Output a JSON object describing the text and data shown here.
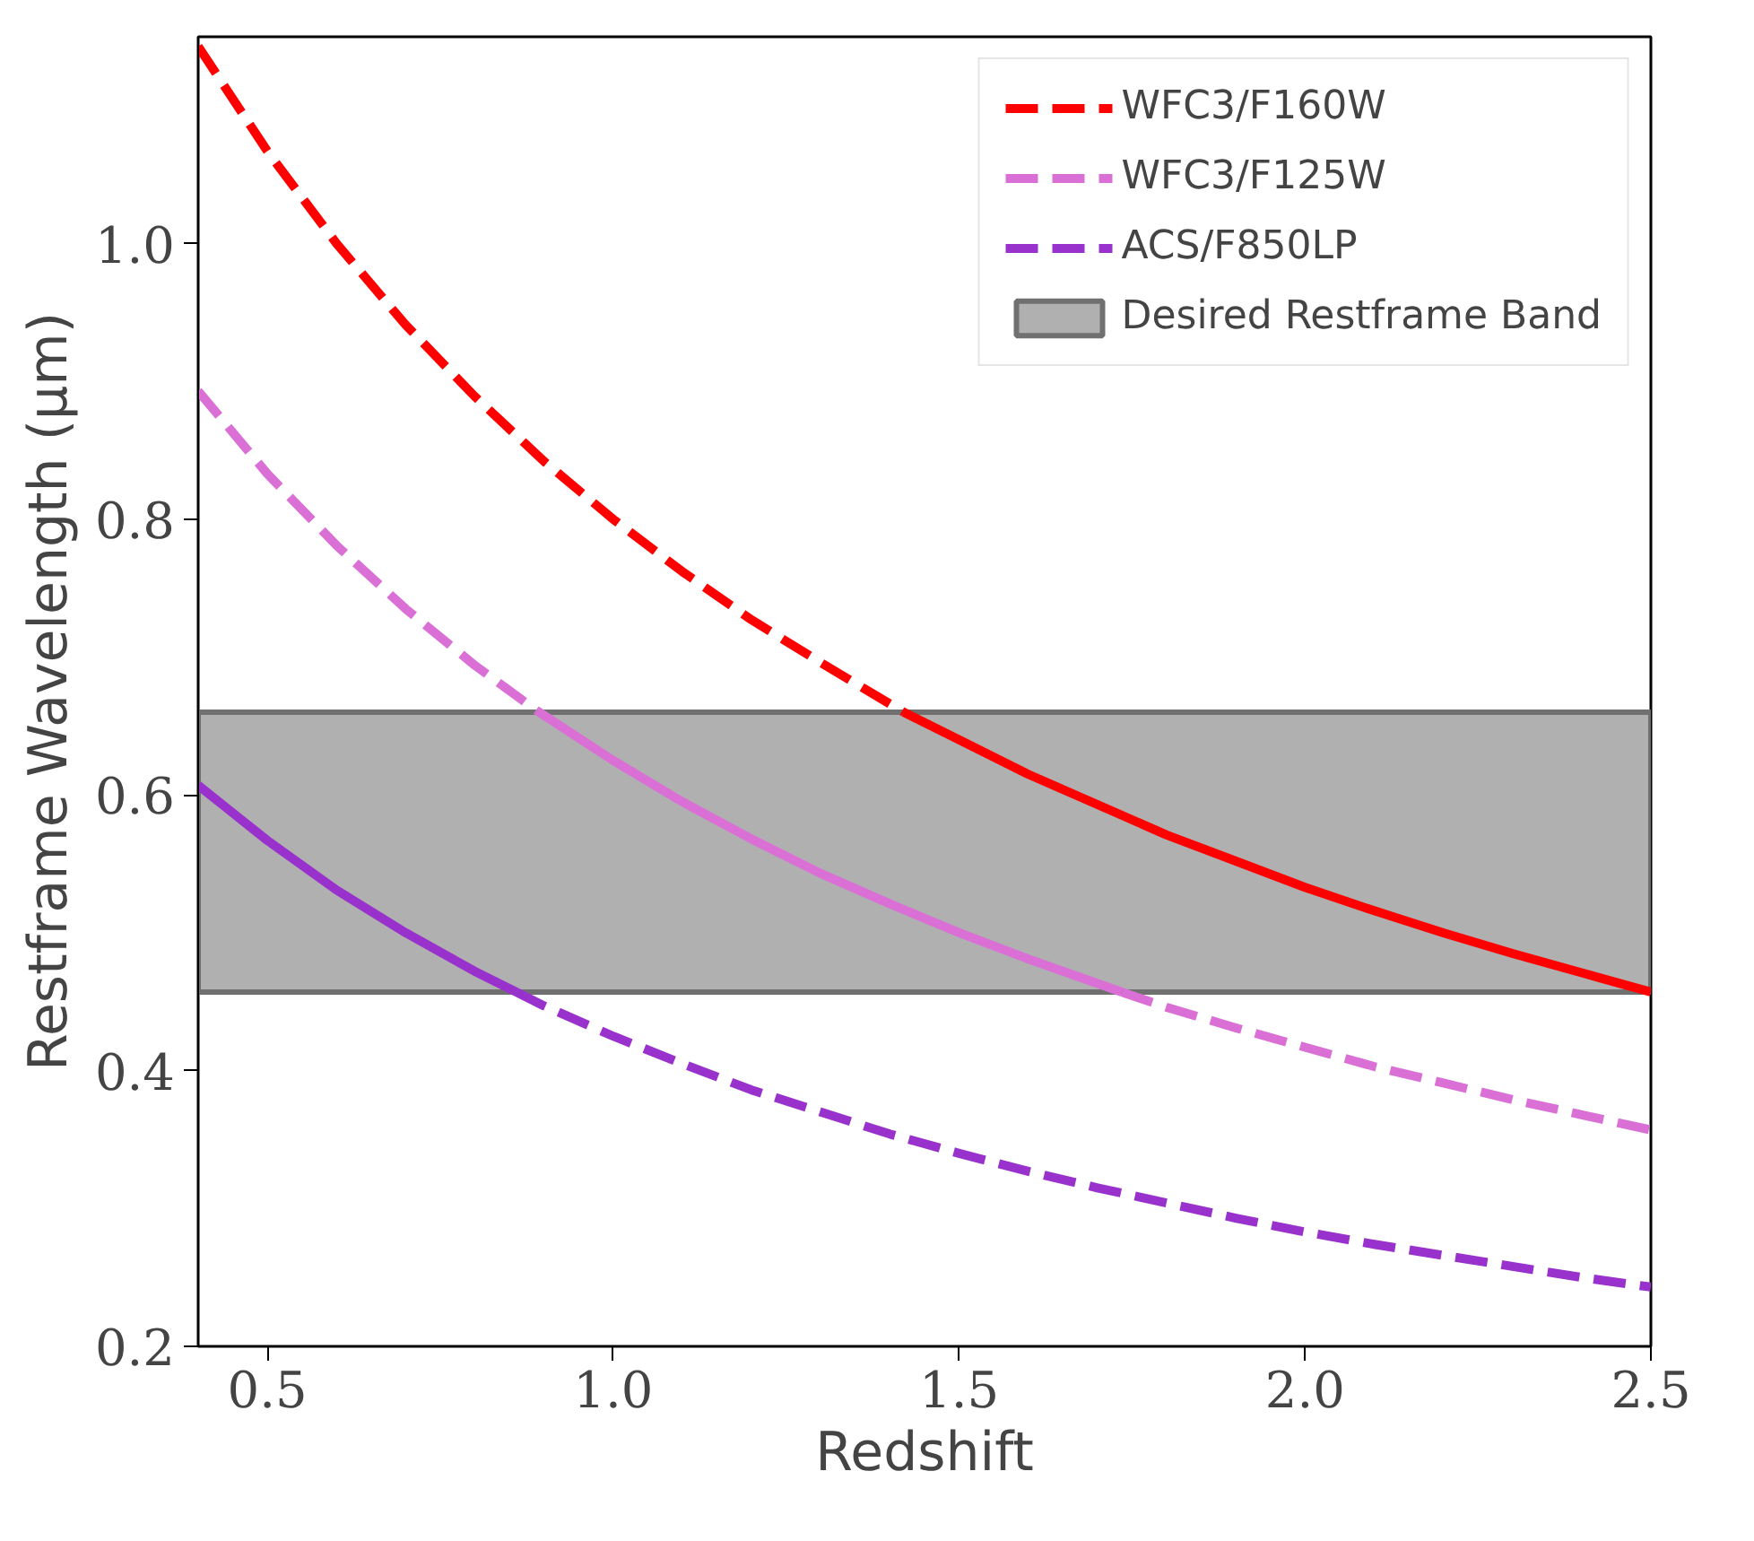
{
  "chart_data": {
    "type": "line",
    "xlabel": "Redshift",
    "ylabel": "Restframe Wavelength (μm)",
    "xlim": [
      0.4,
      2.5
    ],
    "ylim": [
      0.2,
      1.15
    ],
    "xticks": [
      0.5,
      {
        "value": 1,
        "label": "1.0"
      },
      1.5,
      {
        "value": 2,
        "label": "2.0"
      },
      2.5
    ],
    "yticks": [
      0.2,
      0.4,
      0.6,
      0.8,
      {
        "value": 1,
        "label": "1.0"
      }
    ],
    "grid": false,
    "legend": "top right",
    "bands": [
      {
        "axis": "y",
        "from": 0.457,
        "to": 0.66,
        "label": "Desired Restframe Band",
        "color": "#b0b0b0"
      }
    ],
    "series": [
      {
        "name": "WFC3/F160W",
        "color": "#ff0000",
        "line_style": "dashed",
        "x": [
          0.4,
          0.5,
          0.6,
          0.7,
          0.8,
          0.9,
          1.0,
          1.1,
          1.2,
          1.3,
          1.42
        ],
        "values": [
          1.143,
          1.067,
          1.0,
          0.941,
          0.889,
          0.842,
          0.8,
          0.762,
          0.727,
          0.696,
          0.66
        ]
      },
      {
        "color": "#ff0000",
        "line_style": "solid",
        "x": [
          1.42,
          1.5,
          1.6,
          1.7,
          1.8,
          1.9,
          2.0,
          2.1,
          2.2,
          2.3,
          2.4,
          2.5
        ],
        "values": [
          0.66,
          0.64,
          0.615,
          0.593,
          0.571,
          0.552,
          0.533,
          0.516,
          0.5,
          0.485,
          0.471,
          0.457
        ]
      },
      {
        "name": "WFC3/F125W",
        "color": "#da70d6",
        "line_style": "dashed",
        "x": [
          0.4,
          0.5,
          0.6,
          0.7,
          0.8,
          0.89
        ],
        "values": [
          0.893,
          0.833,
          0.781,
          0.735,
          0.694,
          0.661
        ]
      },
      {
        "color": "#da70d6",
        "line_style": "solid",
        "x": [
          0.89,
          1.0,
          1.1,
          1.2,
          1.3,
          1.4,
          1.5,
          1.6,
          1.735
        ],
        "values": [
          0.661,
          0.625,
          0.595,
          0.568,
          0.543,
          0.521,
          0.5,
          0.481,
          0.457
        ]
      },
      {
        "color": "#da70d6",
        "line_style": "dashed",
        "x": [
          1.735,
          1.8,
          1.9,
          2.0,
          2.1,
          2.2,
          2.3,
          2.4,
          2.5
        ],
        "values": [
          0.457,
          0.446,
          0.431,
          0.417,
          0.403,
          0.391,
          0.379,
          0.368,
          0.357
        ]
      },
      {
        "name": "ACS/F850LP",
        "color": "#9932cc",
        "line_style": "dashed",
        "x": [
          0.86,
          0.9,
          1.0,
          1.1,
          1.2,
          1.3,
          1.4,
          1.5,
          1.6,
          1.7,
          1.8,
          1.9,
          2.0,
          2.1,
          2.2,
          2.3,
          2.4,
          2.5
        ],
        "values": [
          0.457,
          0.447,
          0.425,
          0.405,
          0.386,
          0.37,
          0.354,
          0.34,
          0.327,
          0.315,
          0.304,
          0.293,
          0.283,
          0.274,
          0.266,
          0.258,
          0.25,
          0.243
        ]
      },
      {
        "color": "#9932cc",
        "line_style": "solid",
        "x": [
          0.4,
          0.5,
          0.6,
          0.7,
          0.8,
          0.86
        ],
        "values": [
          0.607,
          0.567,
          0.531,
          0.5,
          0.472,
          0.457
        ]
      }
    ]
  }
}
